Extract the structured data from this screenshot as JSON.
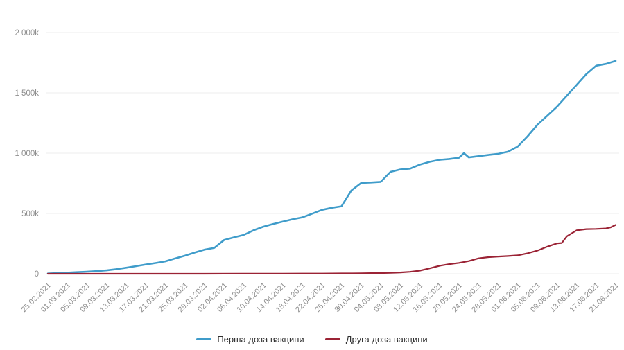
{
  "page": {
    "background_color": "#ffffff"
  },
  "chart_data": {
    "type": "line",
    "title": "",
    "xlabel": "",
    "ylabel": "",
    "value_unit": "thousands (k)",
    "grid": true,
    "legend_position": "bottom",
    "ylim": [
      0,
      2000
    ],
    "x_range_days": [
      0,
      116
    ],
    "x_tick_day_step": 4,
    "x_tick_labels": [
      "25.02.2021",
      "01.03.2021",
      "05.03.2021",
      "09.03.2021",
      "13.03.2021",
      "17.03.2021",
      "21.03.2021",
      "25.03.2021",
      "29.03.2021",
      "02.04.2021",
      "06.04.2021",
      "10.04.2021",
      "14.04.2021",
      "18.04.2021",
      "22.04.2021",
      "26.04.2021",
      "30.04.2021",
      "04.05.2021",
      "08.05.2021",
      "12.05.2021",
      "16.05.2021",
      "20.05.2021",
      "24.05.2021",
      "28.05.2021",
      "01.06.2021",
      "05.06.2021",
      "09.06.2021",
      "13.06.2021",
      "17.06.2021",
      "21.06.2021"
    ],
    "y_ticks": [
      {
        "value": 0,
        "label": "0"
      },
      {
        "value": 500,
        "label": "500k"
      },
      {
        "value": 1000,
        "label": "1 000k"
      },
      {
        "value": 1500,
        "label": "1 500k"
      },
      {
        "value": 2000,
        "label": "2 000k"
      }
    ],
    "series": [
      {
        "name": "Перша доза вакцини",
        "color": "#3f9cca",
        "points": [
          [
            0,
            2
          ],
          [
            2,
            5
          ],
          [
            4,
            9
          ],
          [
            6,
            13
          ],
          [
            8,
            17
          ],
          [
            10,
            22
          ],
          [
            12,
            28
          ],
          [
            14,
            38
          ],
          [
            16,
            50
          ],
          [
            18,
            63
          ],
          [
            20,
            77
          ],
          [
            22,
            89
          ],
          [
            24,
            103
          ],
          [
            26,
            127
          ],
          [
            28,
            150
          ],
          [
            30,
            176
          ],
          [
            32,
            200
          ],
          [
            34,
            215
          ],
          [
            36,
            280
          ],
          [
            38,
            302
          ],
          [
            40,
            322
          ],
          [
            42,
            360
          ],
          [
            44,
            390
          ],
          [
            46,
            412
          ],
          [
            48,
            432
          ],
          [
            50,
            452
          ],
          [
            52,
            468
          ],
          [
            54,
            498
          ],
          [
            56,
            530
          ],
          [
            58,
            547
          ],
          [
            60,
            560
          ],
          [
            62,
            690
          ],
          [
            64,
            753
          ],
          [
            66,
            757
          ],
          [
            68,
            762
          ],
          [
            70,
            845
          ],
          [
            72,
            865
          ],
          [
            74,
            872
          ],
          [
            76,
            905
          ],
          [
            78,
            928
          ],
          [
            80,
            945
          ],
          [
            82,
            952
          ],
          [
            84,
            962
          ],
          [
            85,
            1000
          ],
          [
            86,
            965
          ],
          [
            88,
            975
          ],
          [
            90,
            985
          ],
          [
            92,
            995
          ],
          [
            94,
            1012
          ],
          [
            96,
            1055
          ],
          [
            98,
            1140
          ],
          [
            100,
            1235
          ],
          [
            102,
            1310
          ],
          [
            104,
            1385
          ],
          [
            106,
            1475
          ],
          [
            108,
            1565
          ],
          [
            110,
            1655
          ],
          [
            112,
            1725
          ],
          [
            114,
            1740
          ],
          [
            116,
            1765
          ]
        ]
      },
      {
        "name": "Друга доза вакцини",
        "color": "#9b2335",
        "points": [
          [
            0,
            0
          ],
          [
            8,
            0
          ],
          [
            16,
            0
          ],
          [
            24,
            0
          ],
          [
            32,
            0
          ],
          [
            40,
            1
          ],
          [
            48,
            1
          ],
          [
            52,
            2
          ],
          [
            56,
            2
          ],
          [
            60,
            3
          ],
          [
            62,
            3
          ],
          [
            64,
            4
          ],
          [
            66,
            5
          ],
          [
            68,
            6
          ],
          [
            70,
            8
          ],
          [
            72,
            11
          ],
          [
            74,
            16
          ],
          [
            76,
            26
          ],
          [
            78,
            45
          ],
          [
            80,
            66
          ],
          [
            82,
            80
          ],
          [
            84,
            90
          ],
          [
            86,
            105
          ],
          [
            88,
            128
          ],
          [
            90,
            138
          ],
          [
            92,
            143
          ],
          [
            94,
            147
          ],
          [
            96,
            153
          ],
          [
            98,
            170
          ],
          [
            100,
            192
          ],
          [
            102,
            225
          ],
          [
            104,
            252
          ],
          [
            105,
            255
          ],
          [
            106,
            310
          ],
          [
            108,
            360
          ],
          [
            110,
            370
          ],
          [
            112,
            372
          ],
          [
            114,
            376
          ],
          [
            115,
            385
          ],
          [
            116,
            405
          ]
        ]
      }
    ]
  }
}
